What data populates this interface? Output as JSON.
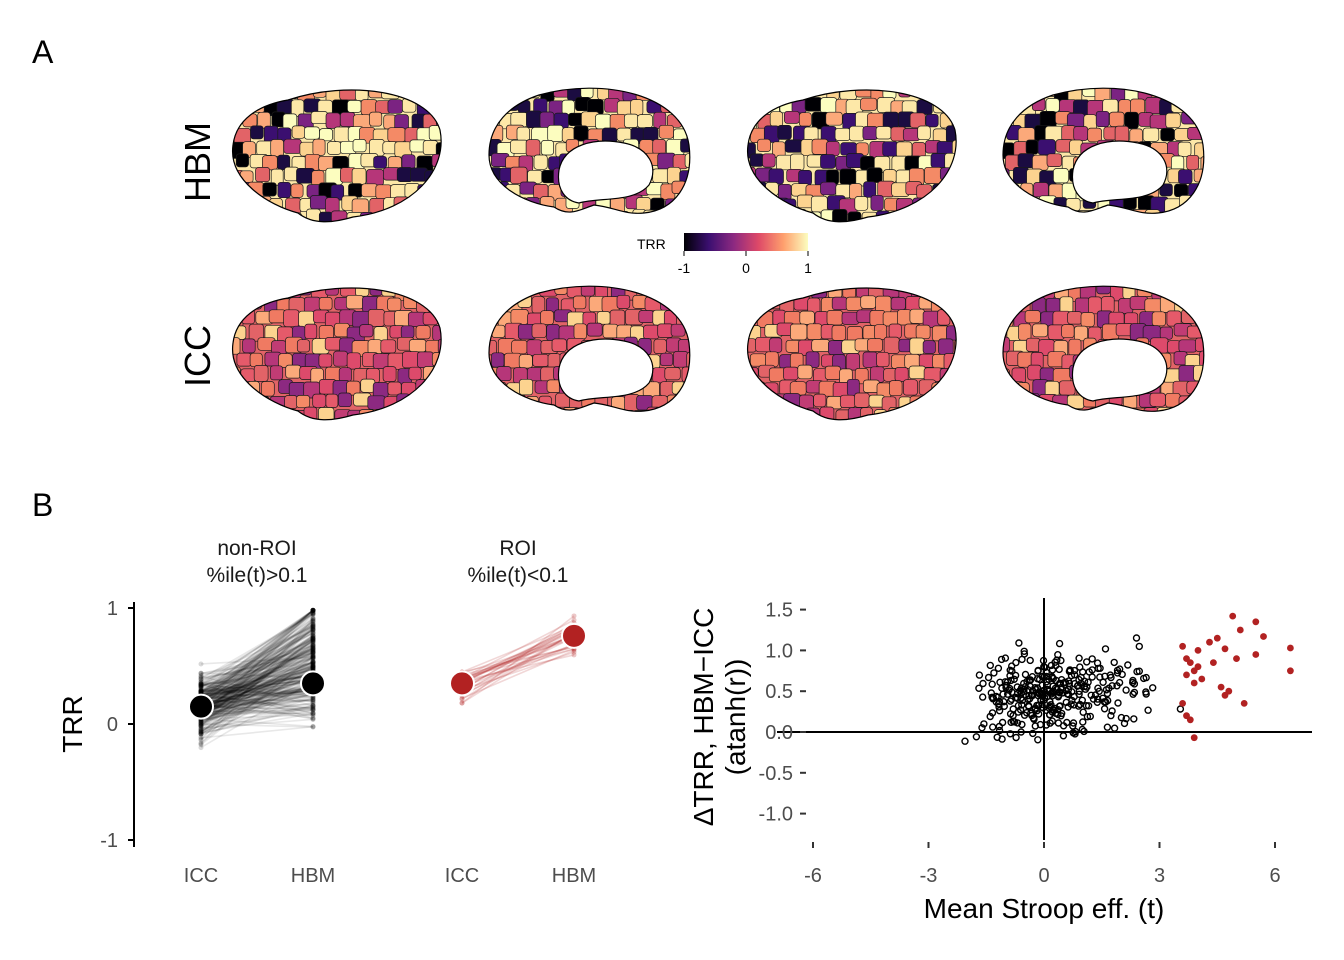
{
  "panel_a": {
    "letter": "A",
    "rows": [
      "HBM",
      "ICC"
    ],
    "colorbar": {
      "title": "TRR",
      "ticks": [
        "-1",
        "0",
        "1"
      ],
      "range": [
        -1,
        1
      ],
      "colors": [
        "#000004",
        "#3b0f70",
        "#8c2981",
        "#de4968",
        "#fe9f6d",
        "#fcfdbf"
      ]
    },
    "views": [
      "lateral-left",
      "medial-left",
      "lateral-right",
      "medial-right"
    ]
  },
  "panel_b": {
    "letter": "B",
    "facet_left": {
      "title": "non-ROI",
      "subtitle": "%ile(t)>0.1",
      "x_labels": [
        "ICC",
        "HBM"
      ]
    },
    "facet_right": {
      "title": "ROI",
      "subtitle": "%ile(t)<0.1",
      "x_labels": [
        "ICC",
        "HBM"
      ]
    },
    "scatter": {
      "ylabel_line1": "ΔTRR, HBM−ICC",
      "ylabel_line2": "(atanh(r))",
      "xlabel": "Mean Stroop eff. (t)"
    }
  },
  "chart_data": [
    {
      "type": "line",
      "panel": "B-left",
      "ylabel": "TRR",
      "ylim": [
        -1,
        1
      ],
      "y_ticks": [
        "-1",
        "0",
        "1"
      ],
      "x": [
        "ICC",
        "HBM"
      ],
      "series": [
        {
          "name": "non-ROI",
          "color": "#000000",
          "values": [
            0.15,
            0.35
          ]
        },
        {
          "name": "ROI",
          "color": "#b22222",
          "values": [
            0.35,
            0.76
          ]
        }
      ]
    },
    {
      "type": "scatter",
      "panel": "B-right",
      "xlabel": "Mean Stroop eff. (t)",
      "ylabel": "ΔTRR, HBM−ICC (atanh(r))",
      "xlim": [
        -6,
        7
      ],
      "ylim": [
        -1.4,
        1.55
      ],
      "x_ticks": [
        "-6",
        "-3",
        "0",
        "3",
        "6"
      ],
      "y_ticks": [
        "-1.0",
        "-0.5",
        "0.0",
        "0.5",
        "1.0",
        "1.5"
      ],
      "reference_lines": {
        "x": 0,
        "y": 0
      },
      "roi_points": [
        [
          3.6,
          1.05
        ],
        [
          3.7,
          0.9
        ],
        [
          3.8,
          0.85
        ],
        [
          3.9,
          0.75
        ],
        [
          4.0,
          0.8
        ],
        [
          3.7,
          0.7
        ],
        [
          3.9,
          0.6
        ],
        [
          4.1,
          0.65
        ],
        [
          3.6,
          0.35
        ],
        [
          3.7,
          0.2
        ],
        [
          3.8,
          0.15
        ],
        [
          3.9,
          -0.07
        ],
        [
          4.3,
          1.1
        ],
        [
          4.5,
          1.15
        ],
        [
          4.9,
          1.42
        ],
        [
          5.1,
          1.25
        ],
        [
          5.5,
          1.35
        ],
        [
          5.7,
          1.17
        ],
        [
          6.4,
          1.03
        ],
        [
          6.4,
          0.75
        ],
        [
          4.6,
          0.55
        ],
        [
          4.7,
          0.45
        ],
        [
          4.8,
          0.5
        ],
        [
          5.0,
          0.9
        ],
        [
          4.7,
          1.02
        ],
        [
          5.2,
          0.35
        ],
        [
          5.5,
          0.95
        ],
        [
          4.0,
          1.0
        ],
        [
          4.4,
          0.85
        ]
      ]
    }
  ]
}
